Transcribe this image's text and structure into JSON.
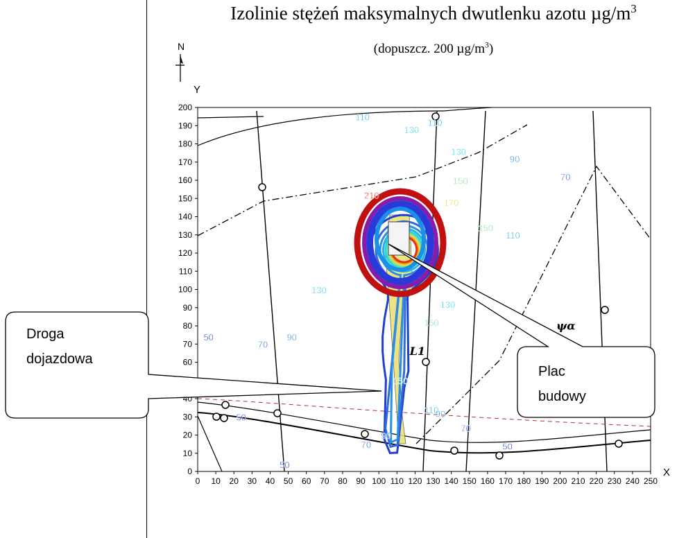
{
  "title": {
    "text": "Izolinie stężeń maksymalnych dwutlenku azotu µg/m",
    "sup": "3"
  },
  "subtitle": {
    "text": "(dopuszcz. 200 µg/m",
    "sup": "3",
    "close": ")"
  },
  "north_label": "N",
  "axes": {
    "x_label": "X",
    "y_label": "Y",
    "x_ticks": [
      "0",
      "10",
      "20",
      "30",
      "40",
      "50",
      "60",
      "70",
      "80",
      "90",
      "100",
      "110",
      "120",
      "130",
      "140",
      "150",
      "160",
      "170",
      "180",
      "190",
      "200",
      "210",
      "220",
      "230",
      "240",
      "250"
    ],
    "y_ticks": [
      "0",
      "10",
      "20",
      "30",
      "40",
      "50",
      "60",
      "70",
      "80",
      "90",
      "100",
      "110",
      "120",
      "130",
      "140",
      "150",
      "160",
      "170",
      "180",
      "190",
      "200"
    ],
    "x_range": [
      0,
      250
    ],
    "y_range": [
      0,
      200
    ]
  },
  "callouts": [
    {
      "id": "droga",
      "lines": [
        "Droga",
        "dojazdowa"
      ]
    },
    {
      "id": "plac",
      "lines": [
        "Plac",
        "budowy"
      ]
    }
  ],
  "contours": [
    {
      "level": 50,
      "color": "#1f3fd0"
    },
    {
      "level": 70,
      "color": "#2f6ae0"
    },
    {
      "level": 90,
      "color": "#2a8fe8"
    },
    {
      "level": 110,
      "color": "#22b4ea"
    },
    {
      "level": 130,
      "color": "#25d6e0"
    },
    {
      "level": 150,
      "color": "#7ee0a0"
    },
    {
      "level": 170,
      "color": "#e8e040"
    },
    {
      "level": 190,
      "color": "#f2a020"
    },
    {
      "level": 210,
      "color": "#e83010"
    }
  ],
  "contour_labels": [
    {
      "text": "110",
      "x": 91,
      "y": 193
    },
    {
      "text": "130",
      "x": 118,
      "y": 186
    },
    {
      "text": "110",
      "x": 131,
      "y": 190
    },
    {
      "text": "130",
      "x": 144,
      "y": 174
    },
    {
      "text": "150",
      "x": 145,
      "y": 158
    },
    {
      "text": "170",
      "x": 140,
      "y": 146
    },
    {
      "text": "150",
      "x": 159,
      "y": 132
    },
    {
      "text": "90",
      "x": 175,
      "y": 170
    },
    {
      "text": "70",
      "x": 203,
      "y": 160
    },
    {
      "text": "110",
      "x": 174,
      "y": 128
    },
    {
      "text": "130",
      "x": 67,
      "y": 98
    },
    {
      "text": "90",
      "x": 52,
      "y": 72
    },
    {
      "text": "70",
      "x": 36,
      "y": 68
    },
    {
      "text": "50",
      "x": 6,
      "y": 72
    },
    {
      "text": "130",
      "x": 138,
      "y": 90
    },
    {
      "text": "150",
      "x": 129,
      "y": 80
    },
    {
      "text": "110",
      "x": 129,
      "y": 32
    },
    {
      "text": "90",
      "x": 134,
      "y": 30
    },
    {
      "text": "70",
      "x": 148,
      "y": 22
    },
    {
      "text": "50",
      "x": 171,
      "y": 12
    },
    {
      "text": "50",
      "x": 24,
      "y": 28
    },
    {
      "text": "50",
      "x": 48,
      "y": 2
    },
    {
      "text": "70",
      "x": 93,
      "y": 13
    },
    {
      "text": "90",
      "x": 104,
      "y": 18
    },
    {
      "text": "50",
      "x": 206,
      "y": 64
    },
    {
      "text": "150",
      "x": 112,
      "y": 48
    },
    {
      "text": "210",
      "x": 96,
      "y": 150
    }
  ],
  "map_text": [
    {
      "text": "ψα",
      "x": 198,
      "y": 78
    },
    {
      "text": "L1",
      "x": 117,
      "y": 64
    }
  ]
}
